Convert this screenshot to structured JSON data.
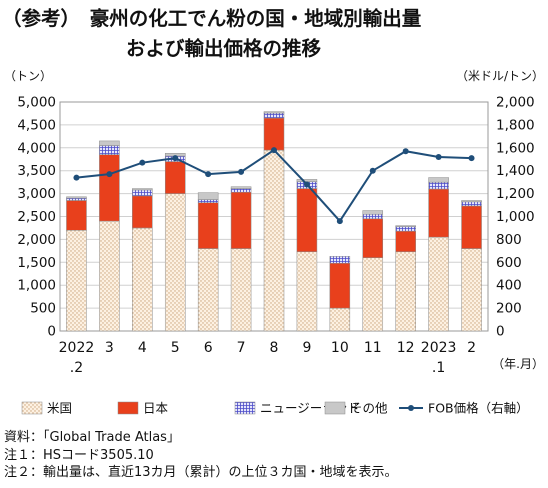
{
  "title_line1": "（参考）　豪州の化工でん粉の国・地域別輸出量",
  "title_line2": "および輸出価格の推移",
  "notes": [
    "資料：「Global Trade Atlas」",
    "注１：HSコード3505.10",
    "注２：輸出量は、直近13カ月（累計）の上位３カ国・地域を表示。"
  ],
  "chart_data": {
    "type": "bar",
    "stacked": true,
    "categories": [
      "2022\n.2",
      "3",
      "4",
      "5",
      "6",
      "7",
      "8",
      "9",
      "10",
      "11",
      "12",
      "2023\n.1",
      "2"
    ],
    "x_unit": "（年.月）",
    "y_left_unit": "（トン）",
    "y_right_unit": "（米ドル/トン）",
    "ylim_left": [
      0,
      5000
    ],
    "y_left_ticks": [
      "0",
      "500",
      "1,000",
      "1,500",
      "2,000",
      "2,500",
      "3,000",
      "3,500",
      "4,000",
      "4,500",
      "5,000"
    ],
    "ylim_right": [
      0,
      2000
    ],
    "y_right_ticks": [
      "0",
      "200",
      "400",
      "600",
      "800",
      "1,000",
      "1,200",
      "1,400",
      "1,600",
      "1,800",
      "2,000"
    ],
    "grid": true,
    "legend_position": "bottom",
    "series": [
      {
        "name": "米国",
        "axis": "left",
        "color": "#fbe3c6",
        "pattern": "dots",
        "values": [
          2200,
          2400,
          2250,
          3000,
          1800,
          1800,
          3950,
          1730,
          500,
          1600,
          1730,
          2050,
          1800
        ]
      },
      {
        "name": "日本",
        "axis": "left",
        "color": "#e8401c",
        "values": [
          650,
          1450,
          700,
          700,
          1000,
          1230,
          700,
          1380,
          980,
          850,
          450,
          1050,
          930
        ]
      },
      {
        "name": "ニュージーランド",
        "axis": "left",
        "color": "#7f7fd6",
        "pattern": "grid",
        "values": [
          50,
          200,
          130,
          120,
          70,
          80,
          110,
          150,
          150,
          100,
          100,
          150,
          90
        ]
      },
      {
        "name": "その他",
        "axis": "left",
        "color": "#c8c8c8",
        "values": [
          30,
          100,
          30,
          60,
          150,
          40,
          30,
          50,
          0,
          80,
          20,
          100,
          30
        ]
      },
      {
        "name": "FOB価格（右軸）",
        "axis": "right",
        "type": "line",
        "color": "#1f4e79",
        "values": [
          1340,
          1370,
          1470,
          1510,
          1370,
          1390,
          1580,
          1280,
          960,
          1400,
          1570,
          1520,
          1510
        ]
      }
    ]
  }
}
